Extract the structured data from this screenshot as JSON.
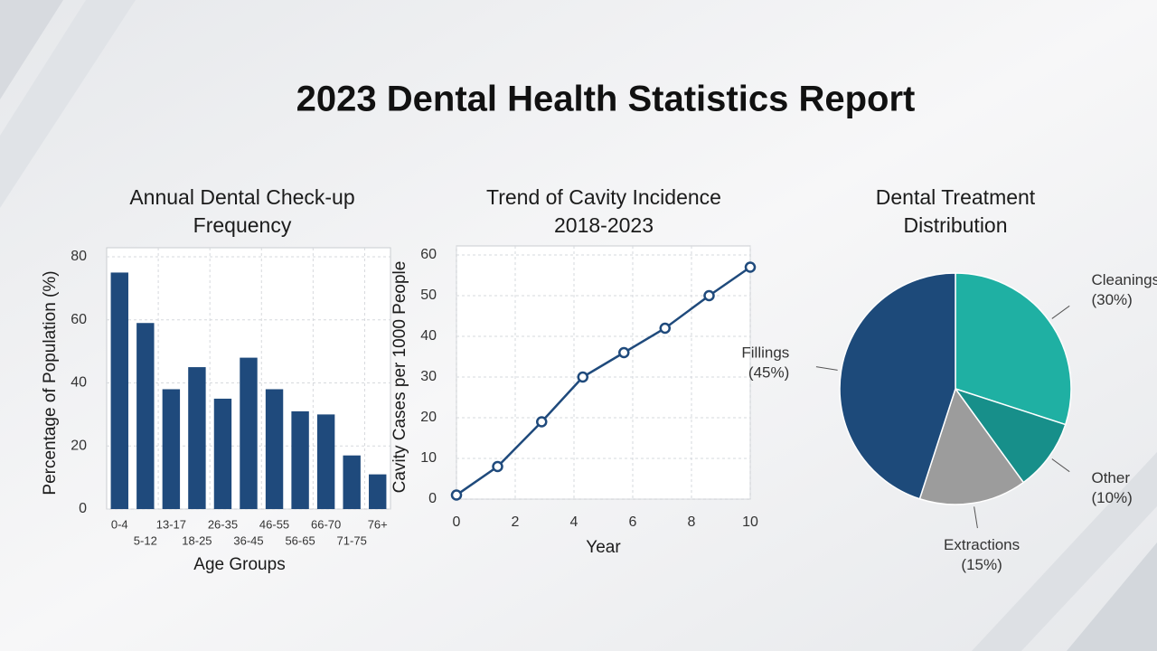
{
  "title": "2023 Dental Health Statistics Report",
  "chart_data": [
    {
      "type": "bar",
      "title": [
        "Annual Dental Check-up",
        "Frequency"
      ],
      "x_label": "Age Groups",
      "y_label": "Percentage of Population (%)",
      "categories": [
        "0-4",
        "5-12",
        "13-17",
        "18-25",
        "26-35",
        "36-45",
        "46-55",
        "56-65",
        "66-70",
        "71-75",
        "76+"
      ],
      "values": [
        75,
        59,
        38,
        45,
        35,
        48,
        38,
        31,
        30,
        17,
        11
      ],
      "color": "#1f4a7c",
      "ylim": [
        0,
        80
      ],
      "yticks": [
        0,
        20,
        40,
        60,
        80
      ],
      "grid": true
    },
    {
      "type": "line",
      "title": [
        "Trend of Cavity Incidence",
        "2018-2023"
      ],
      "x_label": "Year",
      "y_label": "Cavity Cases per 1000 People",
      "x": [
        0,
        1.4,
        2.9,
        4.3,
        5.7,
        7.1,
        8.6,
        10
      ],
      "series": [
        {
          "name": "Cavity Cases",
          "color": "#1f4a7c",
          "values": [
            1,
            8,
            19,
            30,
            36,
            42,
            50,
            57
          ]
        }
      ],
      "xlim": [
        0,
        10
      ],
      "xticks": [
        0,
        2,
        4,
        6,
        8,
        10
      ],
      "ylim": [
        0,
        60
      ],
      "yticks": [
        0,
        10,
        20,
        30,
        40,
        50,
        60
      ],
      "grid": true
    },
    {
      "type": "pie",
      "title": [
        "Dental Treatment",
        "Distribution"
      ],
      "categories": [
        "Cleanings",
        "Other",
        "Extractions",
        "Fillings"
      ],
      "values": [
        30,
        10,
        15,
        45
      ],
      "value_labels": [
        "(30%)",
        "(10%)",
        "(15%)",
        "(45%)"
      ],
      "colors": [
        "#1fb0a3",
        "#178f8a",
        "#9c9c9c",
        "#1d4a7a"
      ]
    }
  ]
}
